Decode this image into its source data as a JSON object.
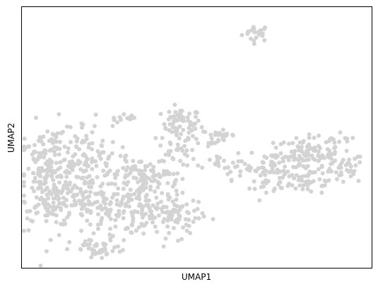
{
  "chart_data": {
    "type": "scatter",
    "title": "",
    "xlabel": "UMAP1",
    "ylabel": "UMAP2",
    "grid": false,
    "legend": "none",
    "ticks": "none",
    "point_color": "#d3d3d3",
    "xlim": [
      0,
      100
    ],
    "ylim": [
      0,
      100
    ],
    "clusters": [
      {
        "cx": 67.0,
        "cy": 90.0,
        "sx": 2.0,
        "sy": 1.6,
        "n": 22
      },
      {
        "cx": 30.0,
        "cy": 57.0,
        "sx": 2.2,
        "sy": 0.9,
        "n": 12
      },
      {
        "cx": 45.0,
        "cy": 57.0,
        "sx": 1.5,
        "sy": 1.0,
        "n": 4
      },
      {
        "cx": 45.5,
        "cy": 55.5,
        "sx": 2.8,
        "sy": 2.8,
        "n": 55
      },
      {
        "cx": 44.0,
        "cy": 46.0,
        "sx": 2.5,
        "sy": 3.5,
        "n": 30
      },
      {
        "cx": 53.0,
        "cy": 50.0,
        "sx": 3.0,
        "sy": 2.0,
        "n": 20
      },
      {
        "cx": 58.0,
        "cy": 50.5,
        "sx": 2.0,
        "sy": 1.2,
        "n": 15
      },
      {
        "cx": 56.0,
        "cy": 41.0,
        "sx": 4.0,
        "sy": 2.0,
        "n": 20
      },
      {
        "cx": 63.0,
        "cy": 38.0,
        "sx": 3.0,
        "sy": 2.0,
        "n": 15
      },
      {
        "cx": 72.0,
        "cy": 40.0,
        "sx": 3.5,
        "sy": 3.5,
        "n": 55
      },
      {
        "cx": 71.0,
        "cy": 31.0,
        "sx": 3.0,
        "sy": 1.5,
        "n": 18
      },
      {
        "cx": 81.0,
        "cy": 43.0,
        "sx": 4.0,
        "sy": 3.5,
        "n": 80
      },
      {
        "cx": 82.0,
        "cy": 33.0,
        "sx": 4.0,
        "sy": 2.5,
        "n": 35
      },
      {
        "cx": 91.0,
        "cy": 38.0,
        "sx": 3.5,
        "sy": 3.0,
        "n": 45
      },
      {
        "cx": 90.0,
        "cy": 47.0,
        "sx": 3.0,
        "sy": 2.0,
        "n": 20
      },
      {
        "cx": 8.0,
        "cy": 35.0,
        "sx": 4.5,
        "sy": 10.0,
        "n": 220
      },
      {
        "cx": 18.0,
        "cy": 40.0,
        "sx": 5.0,
        "sy": 8.0,
        "n": 120
      },
      {
        "cx": 14.0,
        "cy": 25.0,
        "sx": 4.0,
        "sy": 3.0,
        "n": 60
      },
      {
        "cx": 22.0,
        "cy": 7.0,
        "sx": 4.0,
        "sy": 2.0,
        "n": 40
      },
      {
        "cx": 26.0,
        "cy": 22.0,
        "sx": 4.0,
        "sy": 6.0,
        "n": 70
      },
      {
        "cx": 33.0,
        "cy": 36.0,
        "sx": 5.0,
        "sy": 3.0,
        "n": 70
      },
      {
        "cx": 36.0,
        "cy": 22.0,
        "sx": 5.0,
        "sy": 4.0,
        "n": 90
      },
      {
        "cx": 45.0,
        "cy": 20.0,
        "sx": 3.5,
        "sy": 4.0,
        "n": 60
      },
      {
        "cx": 40.0,
        "cy": 33.0,
        "sx": 3.0,
        "sy": 3.0,
        "n": 30
      }
    ]
  }
}
